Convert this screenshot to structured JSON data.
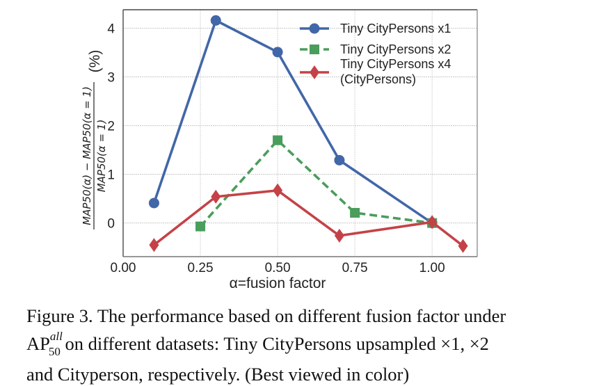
{
  "chart_data": {
    "type": "line",
    "title": "",
    "xlabel": "α=fusion factor",
    "ylabel": {
      "numerator": "MAP50(α) − MAP50(α = 1)",
      "denominator": "MAP50(α = 1)",
      "unit": "(%)"
    },
    "xlim": [
      0.0,
      1.146
    ],
    "ylim": [
      -0.69,
      4.38
    ],
    "xticks": [
      0.0,
      0.25,
      0.5,
      0.75,
      1.0
    ],
    "xtick_labels": [
      "0.00",
      "0.25",
      "0.50",
      "0.75",
      "1.00"
    ],
    "yticks": [
      0,
      1,
      2,
      3,
      4
    ],
    "ytick_labels": [
      "0",
      "1",
      "2",
      "3",
      "4"
    ],
    "grid": true,
    "legend_position": "top-right",
    "series": [
      {
        "name": "Tiny CityPersons x1",
        "color": "#4267a8",
        "marker": "circle",
        "linestyle": "solid",
        "x": [
          0.1,
          0.3,
          0.5,
          0.7,
          1.0
        ],
        "y": [
          0.41,
          4.16,
          3.51,
          1.29,
          0.0
        ]
      },
      {
        "name": "Tiny CityPersons x2",
        "color": "#4a9d5b",
        "marker": "square",
        "linestyle": "dashed",
        "x": [
          0.25,
          0.5,
          0.75,
          1.0
        ],
        "y": [
          -0.07,
          1.7,
          0.21,
          0.0
        ]
      },
      {
        "name": "Tiny CityPersons x4\n(CityPersons)",
        "color": "#c44247",
        "marker": "diamond",
        "linestyle": "solid",
        "x": [
          0.1,
          0.3,
          0.5,
          0.7,
          1.0,
          1.1
        ],
        "y": [
          -0.45,
          0.54,
          0.67,
          -0.26,
          0.02,
          -0.47
        ]
      }
    ]
  },
  "caption": {
    "line1": "Figure 3. The performance based on different fusion factor under",
    "ap_base": "AP",
    "ap_sup": "all",
    "ap_sub": "50",
    "line2_rest": " on different datasets: Tiny CityPersons upsampled ×1, ×2",
    "line3": "and Cityperson, respectively. (Best viewed in color)"
  }
}
